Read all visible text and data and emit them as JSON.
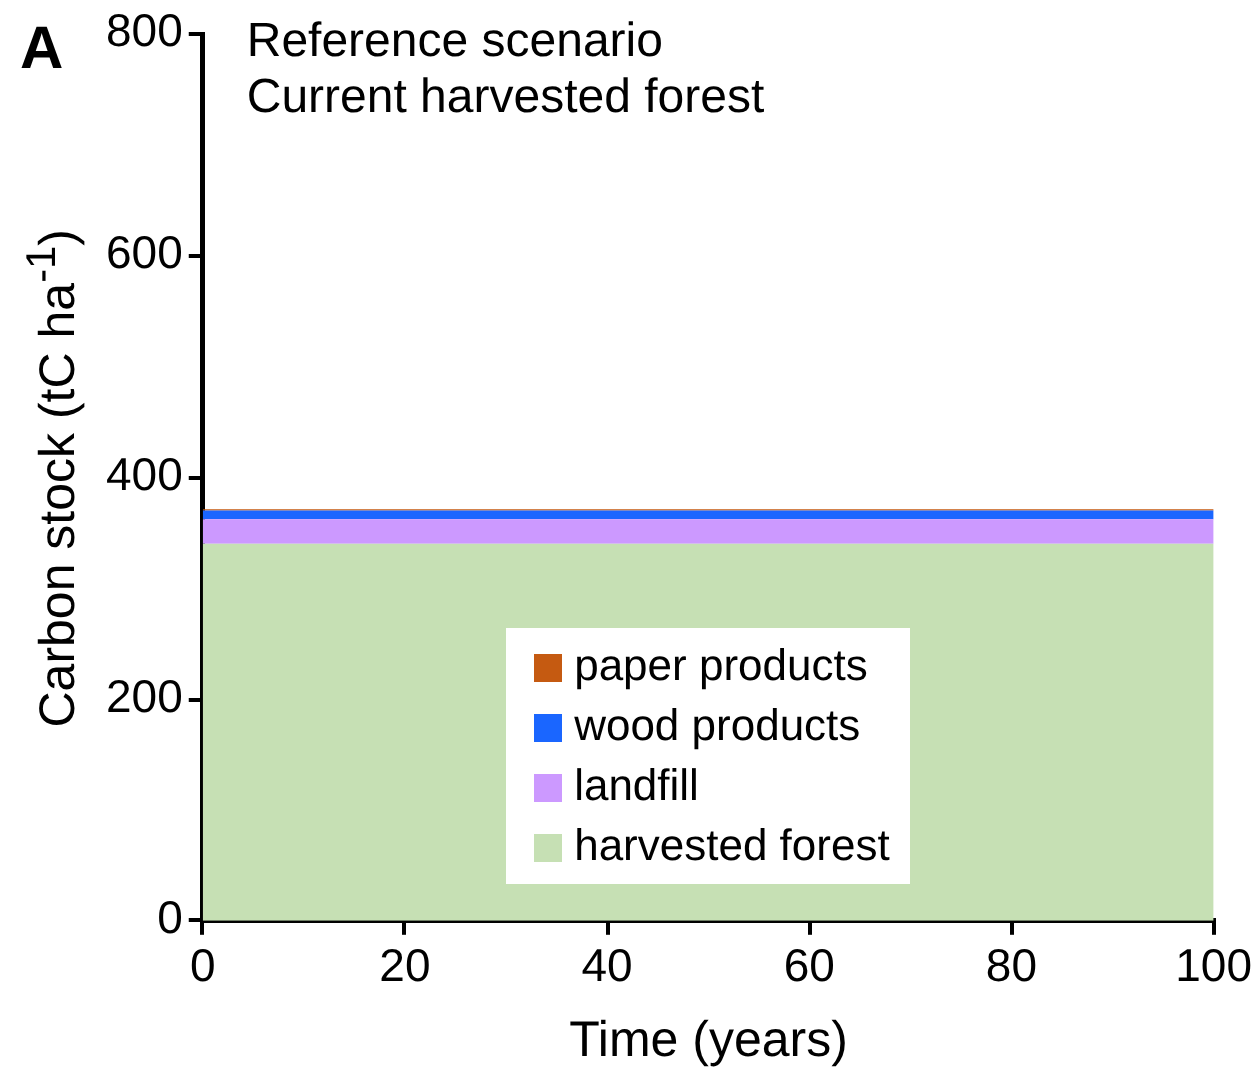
{
  "chart_data": {
    "type": "area",
    "title": "Reference scenario",
    "subtitle": "Current harvested forest",
    "annotations": [
      "A"
    ],
    "xlabel": "Time (years)",
    "ylabel": "Carbon stock (tC ha$^{-1}$)",
    "stacked": true,
    "x": [
      0,
      100
    ],
    "series": [
      {
        "name": "harvested forest",
        "color": "#c6e0b4",
        "values": [
          340,
          340
        ]
      },
      {
        "name": "landfill",
        "color": "#cc99ff",
        "values": [
          22,
          22
        ]
      },
      {
        "name": "wood products",
        "color": "#1a66ff",
        "values": [
          8,
          8
        ]
      },
      {
        "name": "paper products",
        "color": "#c55a11",
        "values": [
          1,
          1
        ]
      }
    ],
    "xlim": [
      0,
      100
    ],
    "xticks": [
      0,
      20,
      40,
      60,
      80,
      100
    ],
    "ylim": [
      0,
      800
    ],
    "yticks": [
      0,
      200,
      400,
      600,
      800
    ],
    "grid": false,
    "legend": "bottom"
  }
}
